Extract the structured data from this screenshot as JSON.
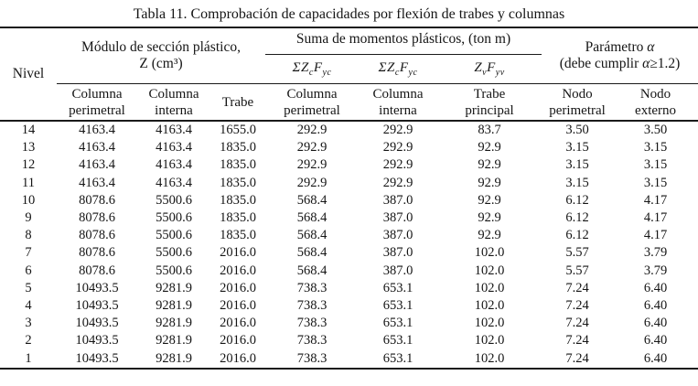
{
  "title": "Tabla 11. Comprobación de capacidades por flexión de trabes y columnas",
  "table": {
    "group_headers": {
      "nivel": "Nivel",
      "modulo_line1": "Módulo de sección plástico,",
      "modulo_line2": "Z (cm³)",
      "suma": "Suma de momentos plásticos, (ton m)",
      "parametro_text": "Parámetro",
      "parametro_alpha": "α",
      "cond_pre": "(debe cumplir",
      "cond_alpha": "α",
      "cond_post": "≥1.2)"
    },
    "formulas": [
      {
        "s1": "ΣZ",
        "sub1": "c",
        "s2": "F",
        "sub2": "yc"
      },
      {
        "s1": "ΣZ",
        "sub1": "c",
        "s2": "F",
        "sub2": "yc"
      },
      {
        "s1": "Z",
        "sub1": "v",
        "s2": "F",
        "sub2": "yv"
      }
    ],
    "sub_headers": [
      {
        "line1": "Columna",
        "line2": "perimetral"
      },
      {
        "line1": "Columna",
        "line2": "interna"
      },
      {
        "line1": "Trabe"
      },
      {
        "line1": "Columna",
        "line2": "perimetral"
      },
      {
        "line1": "Columna",
        "line2": "interna"
      },
      {
        "line1": "Trabe",
        "line2": "principal"
      },
      {
        "line1": "Nodo",
        "line2": "perimetral"
      },
      {
        "line1": "Nodo",
        "line2": "externo"
      }
    ],
    "rows": [
      [
        "14",
        "4163.4",
        "4163.4",
        "1655.0",
        "292.9",
        "292.9",
        "83.7",
        "3.50",
        "3.50"
      ],
      [
        "13",
        "4163.4",
        "4163.4",
        "1835.0",
        "292.9",
        "292.9",
        "92.9",
        "3.15",
        "3.15"
      ],
      [
        "12",
        "4163.4",
        "4163.4",
        "1835.0",
        "292.9",
        "292.9",
        "92.9",
        "3.15",
        "3.15"
      ],
      [
        "11",
        "4163.4",
        "4163.4",
        "1835.0",
        "292.9",
        "292.9",
        "92.9",
        "3.15",
        "3.15"
      ],
      [
        "10",
        "8078.6",
        "5500.6",
        "1835.0",
        "568.4",
        "387.0",
        "92.9",
        "6.12",
        "4.17"
      ],
      [
        "9",
        "8078.6",
        "5500.6",
        "1835.0",
        "568.4",
        "387.0",
        "92.9",
        "6.12",
        "4.17"
      ],
      [
        "8",
        "8078.6",
        "5500.6",
        "1835.0",
        "568.4",
        "387.0",
        "92.9",
        "6.12",
        "4.17"
      ],
      [
        "7",
        "8078.6",
        "5500.6",
        "2016.0",
        "568.4",
        "387.0",
        "102.0",
        "5.57",
        "3.79"
      ],
      [
        "6",
        "8078.6",
        "5500.6",
        "2016.0",
        "568.4",
        "387.0",
        "102.0",
        "5.57",
        "3.79"
      ],
      [
        "5",
        "10493.5",
        "9281.9",
        "2016.0",
        "738.3",
        "653.1",
        "102.0",
        "7.24",
        "6.40"
      ],
      [
        "4",
        "10493.5",
        "9281.9",
        "2016.0",
        "738.3",
        "653.1",
        "102.0",
        "7.24",
        "6.40"
      ],
      [
        "3",
        "10493.5",
        "9281.9",
        "2016.0",
        "738.3",
        "653.1",
        "102.0",
        "7.24",
        "6.40"
      ],
      [
        "2",
        "10493.5",
        "9281.9",
        "2016.0",
        "738.3",
        "653.1",
        "102.0",
        "7.24",
        "6.40"
      ],
      [
        "1",
        "10493.5",
        "9281.9",
        "2016.0",
        "738.3",
        "653.1",
        "102.0",
        "7.24",
        "6.40"
      ]
    ]
  }
}
